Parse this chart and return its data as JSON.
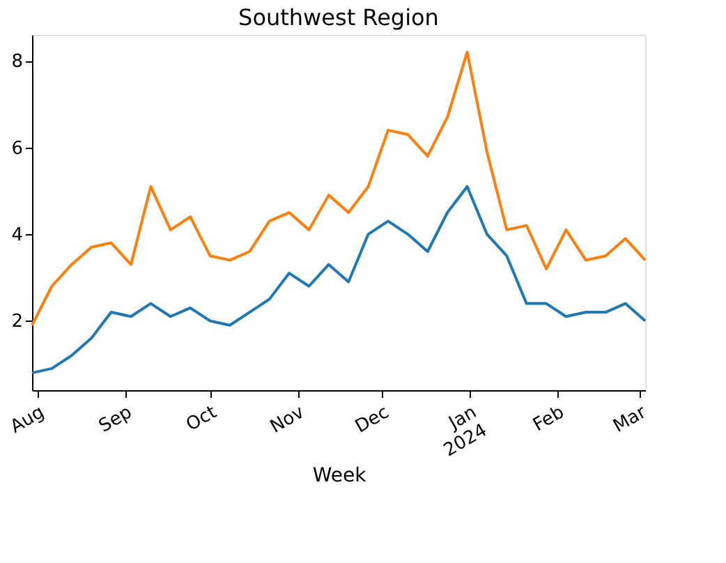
{
  "chart_data": {
    "type": "line",
    "title": "Southwest Region",
    "xlabel": "Week",
    "x": [
      "2023-07-30",
      "2023-08-06",
      "2023-08-13",
      "2023-08-20",
      "2023-08-27",
      "2023-09-03",
      "2023-09-10",
      "2023-09-17",
      "2023-09-24",
      "2023-10-01",
      "2023-10-08",
      "2023-10-15",
      "2023-10-22",
      "2023-10-29",
      "2023-11-05",
      "2023-11-12",
      "2023-11-19",
      "2023-11-26",
      "2023-12-03",
      "2023-12-10",
      "2023-12-17",
      "2023-12-24",
      "2023-12-31",
      "2024-01-07",
      "2024-01-14",
      "2024-01-21",
      "2024-01-28",
      "2024-02-04",
      "2024-02-11",
      "2024-02-18",
      "2024-02-25",
      "2024-03-03"
    ],
    "series": [
      {
        "color": "#ff7f0e",
        "values": [
          1.9,
          2.8,
          3.3,
          3.7,
          3.8,
          3.3,
          5.1,
          4.1,
          4.4,
          3.5,
          3.4,
          3.6,
          4.3,
          4.5,
          4.1,
          4.9,
          4.5,
          5.1,
          6.4,
          6.3,
          5.8,
          6.7,
          8.2,
          5.9,
          4.1,
          4.2,
          3.2,
          4.1,
          3.4,
          3.5,
          3.9,
          3.4
        ]
      },
      {
        "color": "#1f77b4",
        "values": [
          0.8,
          0.9,
          1.2,
          1.6,
          2.2,
          2.1,
          2.4,
          2.1,
          2.3,
          2.0,
          1.9,
          2.2,
          2.5,
          3.1,
          2.8,
          3.3,
          2.9,
          4.0,
          4.3,
          4.0,
          3.6,
          4.5,
          5.1,
          4.0,
          3.5,
          2.4,
          2.4,
          2.1,
          2.2,
          2.2,
          2.4,
          2.0
        ]
      }
    ],
    "xlim": [
      "2023-07-30",
      "2024-03-03"
    ],
    "xticks": [
      {
        "value": "2023-08-01",
        "label": "Aug"
      },
      {
        "value": "2023-09-01",
        "label": "Sep"
      },
      {
        "value": "2023-10-01",
        "label": "Oct"
      },
      {
        "value": "2023-11-01",
        "label": "Nov"
      },
      {
        "value": "2023-12-01",
        "label": "Dec"
      },
      {
        "value": "2024-01-01",
        "label": "Jan\n2024"
      },
      {
        "value": "2024-02-01",
        "label": "Feb"
      },
      {
        "value": "2024-03-01",
        "label": "Mar"
      }
    ],
    "ylim": [
      0.4,
      8.6
    ],
    "yticks": [
      2,
      4,
      6,
      8
    ],
    "grid": false,
    "legend": false,
    "marker": "none",
    "line_style": "solid"
  }
}
